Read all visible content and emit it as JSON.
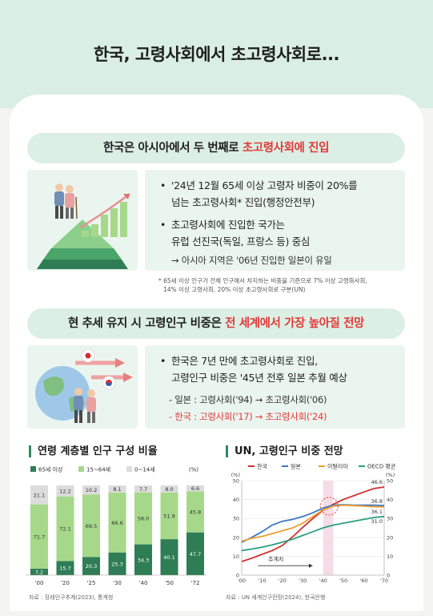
{
  "title": "한국, 고령사회에서 초고령사회로...",
  "section1": {
    "heading_prefix": "한국은 아시아에서 두 번째로 ",
    "heading_highlight": "초고령사회에 진입",
    "bullet1_line1": "'24년 12월 65세 이상 고령자 비중이 20%를",
    "bullet1_line2": "넘는 초고령사회* 진입(행정안전부)",
    "bullet2_line1": "초고령사회에 진입한 국가는",
    "bullet2_line2": "유럽 선진국(독일, 프랑스 등) 중심",
    "bullet2_line3": "→ 아시아 지역은 '06년 진입한 일본이 유일",
    "note_line1": "* 65세 이상 인구가 전체 인구에서 차지하는 비중을 기준으로 7% 이상 고령화사회,",
    "note_line2": "14% 이상 고령사회, 20% 이상 초고령사회로 구분(UN)"
  },
  "section2": {
    "heading_prefix": "현 추세 유지 시 고령인구 비중은 ",
    "heading_highlight": "전 세계에서 가장 높아질 전망",
    "bullet1_line1": "한국은 7년 만에 초고령사회로 진입,",
    "bullet1_line2": "고령인구 비중은 '45년 전후 일본 추월 예상",
    "japan_line": "- 일본 : 고령사회('94) → 초고령사회('06)",
    "korea_line": "- 한국 : 고령사회('17) → 초고령사회('24)"
  },
  "colors": {
    "green_dark": "#2f7d55",
    "green_light": "#a6d88a",
    "gray_light": "#dcdcdc",
    "korea": "#d32f2f",
    "japan": "#3a78c2",
    "italy": "#f0a030",
    "oecd": "#28a07e",
    "accent_red": "#e03a3a"
  },
  "chart_data": [
    {
      "type": "bar",
      "stacked": true,
      "title": "연령 계층별 인구 구성 비율",
      "unit": "(%)",
      "categories": [
        "'00",
        "'20",
        "'25",
        "'30",
        "'40",
        "'50",
        "'72"
      ],
      "series": [
        {
          "name": "65세 이상",
          "values": [
            7.2,
            15.7,
            20.3,
            25.3,
            34.3,
            40.1,
            47.7
          ]
        },
        {
          "name": "15~64세",
          "values": [
            71.7,
            72.1,
            69.5,
            66.6,
            58.0,
            51.9,
            45.8
          ]
        },
        {
          "name": "0~14세",
          "values": [
            21.1,
            12.2,
            10.2,
            8.1,
            7.7,
            8.0,
            6.6
          ]
        }
      ],
      "labels": {
        "bottom": [
          "7.2",
          "15.7",
          "20.3",
          "25.3",
          "34.3",
          "40.1",
          "47.7"
        ],
        "middle": [
          "71.7",
          "72.1",
          "69.5",
          "66.6",
          "58.0",
          "51.9",
          "45.8"
        ],
        "top": [
          "21.1",
          "12.2",
          "10.2",
          "8.1",
          "7.7",
          "8.0",
          "6.6"
        ]
      },
      "source": "자료 : 장래인구추계(2023), 통계청"
    },
    {
      "type": "line",
      "title": "UN, 고령인구 비중 전망",
      "unit_left": "(%)",
      "unit_right": "(%)",
      "ylim": [
        0,
        50
      ],
      "y_ticks": [
        "0",
        "10",
        "20",
        "30",
        "40",
        "50"
      ],
      "x": [
        2000,
        2005,
        2010,
        2015,
        2020,
        2025,
        2030,
        2035,
        2040,
        2045,
        2050,
        2055,
        2060,
        2065,
        2070
      ],
      "x_tick_labels": [
        "'00",
        "'10",
        "'20",
        "'30",
        "'40",
        "'50",
        "'60",
        "'70"
      ],
      "x_tick_values": [
        2000,
        2010,
        2020,
        2030,
        2040,
        2050,
        2060,
        2070
      ],
      "series": [
        {
          "name": "한국",
          "values": [
            7.2,
            9.0,
            11.0,
            13.0,
            15.7,
            20.3,
            25.3,
            30.0,
            34.3,
            37.5,
            40.1,
            42.0,
            44.0,
            45.8,
            46.6
          ]
        },
        {
          "name": "일본",
          "values": [
            17.4,
            20.0,
            23.0,
            26.5,
            28.5,
            29.5,
            31.0,
            33.0,
            35.5,
            37.0,
            37.3,
            37.0,
            37.0,
            37.0,
            36.8
          ]
        },
        {
          "name": "이탈리아",
          "values": [
            18.0,
            19.5,
            20.5,
            22.0,
            23.5,
            25.0,
            27.5,
            31.0,
            34.5,
            36.5,
            37.0,
            36.8,
            36.5,
            36.2,
            36.1
          ]
        },
        {
          "name": "OECD 평균",
          "values": [
            13.0,
            13.8,
            14.8,
            16.0,
            17.5,
            19.0,
            21.0,
            23.0,
            25.0,
            26.5,
            27.5,
            28.5,
            29.5,
            30.5,
            31.0
          ]
        }
      ],
      "end_labels": [
        "46.6",
        "36.8",
        "36.1",
        "31.0"
      ],
      "annotation": "추계치",
      "source": "자료 : UN 세계인구전망(2024), 한국은행"
    }
  ]
}
